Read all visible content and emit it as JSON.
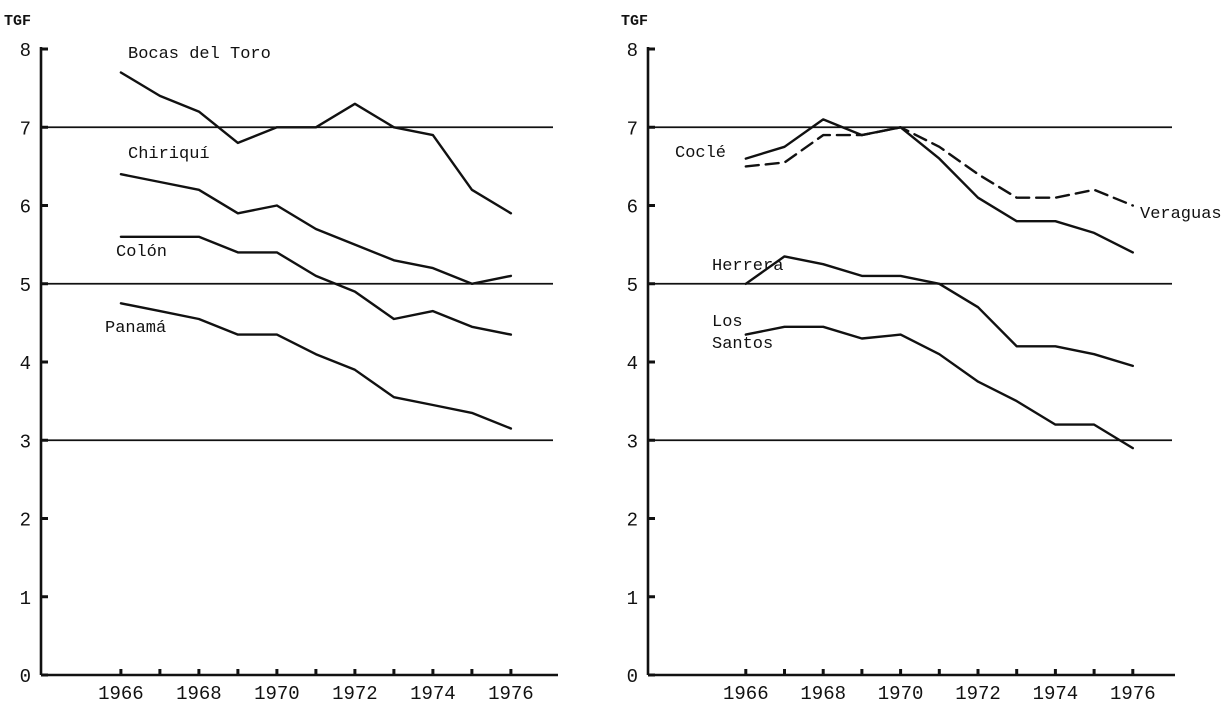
{
  "chart_data": [
    {
      "type": "line",
      "ylabel": "TGF",
      "ylim": [
        0,
        8
      ],
      "yticks": [
        0,
        1,
        2,
        3,
        4,
        5,
        6,
        7,
        8
      ],
      "xlim": [
        1965,
        1977
      ],
      "xticks": [
        1966,
        1967,
        1968,
        1969,
        1970,
        1971,
        1972,
        1973,
        1974,
        1975,
        1976
      ],
      "xtick_labels": [
        "1966",
        "1968",
        "1970",
        "1972",
        "1974",
        "1976"
      ],
      "reference_lines": [
        7,
        5,
        3
      ],
      "grid": false,
      "x": [
        1966,
        1967,
        1968,
        1969,
        1970,
        1971,
        1972,
        1973,
        1974,
        1975,
        1976
      ],
      "series": [
        {
          "name": "Bocas del Toro",
          "style": "solid",
          "values": [
            7.7,
            7.4,
            7.2,
            6.8,
            7.0,
            7.0,
            7.3,
            7.0,
            6.9,
            6.2,
            5.9
          ]
        },
        {
          "name": "Chiriquí",
          "style": "solid",
          "values": [
            6.4,
            6.3,
            6.2,
            5.9,
            6.0,
            5.7,
            5.5,
            5.3,
            5.2,
            5.0,
            5.1
          ]
        },
        {
          "name": "Colón",
          "style": "solid",
          "values": [
            5.6,
            5.6,
            5.6,
            5.4,
            5.4,
            5.1,
            4.9,
            4.55,
            4.65,
            4.45,
            4.35
          ]
        },
        {
          "name": "Panamá",
          "style": "solid",
          "values": [
            4.75,
            4.65,
            4.55,
            4.35,
            4.35,
            4.1,
            3.9,
            3.55,
            3.45,
            3.35,
            3.15
          ]
        }
      ]
    },
    {
      "type": "line",
      "ylabel": "TGF",
      "ylim": [
        0,
        8
      ],
      "yticks": [
        0,
        1,
        2,
        3,
        4,
        5,
        6,
        7,
        8
      ],
      "xlim": [
        1965,
        1977
      ],
      "xticks": [
        1966,
        1967,
        1968,
        1969,
        1970,
        1971,
        1972,
        1973,
        1974,
        1975,
        1976
      ],
      "xtick_labels": [
        "1966",
        "1968",
        "1970",
        "1972",
        "1974",
        "1976"
      ],
      "reference_lines": [
        7,
        5,
        3
      ],
      "grid": false,
      "x": [
        1966,
        1967,
        1968,
        1969,
        1970,
        1971,
        1972,
        1973,
        1974,
        1975,
        1976
      ],
      "series": [
        {
          "name": "Coclé",
          "style": "solid",
          "values": [
            6.6,
            6.75,
            7.1,
            6.9,
            7.0,
            6.6,
            6.1,
            5.8,
            5.8,
            5.65,
            5.4
          ]
        },
        {
          "name": "Veraguas",
          "style": "dashed",
          "values": [
            6.5,
            6.55,
            6.9,
            6.9,
            7.0,
            6.75,
            6.4,
            6.1,
            6.1,
            6.2,
            6.0
          ]
        },
        {
          "name": "Herrera",
          "style": "solid",
          "values": [
            5.0,
            5.35,
            5.25,
            5.1,
            5.1,
            5.0,
            4.7,
            4.2,
            4.2,
            4.1,
            3.95
          ]
        },
        {
          "name": "Los Santos",
          "style": "solid",
          "values": [
            4.35,
            4.45,
            4.45,
            4.3,
            4.35,
            4.1,
            3.75,
            3.5,
            3.2,
            3.2,
            2.9
          ]
        }
      ]
    }
  ]
}
